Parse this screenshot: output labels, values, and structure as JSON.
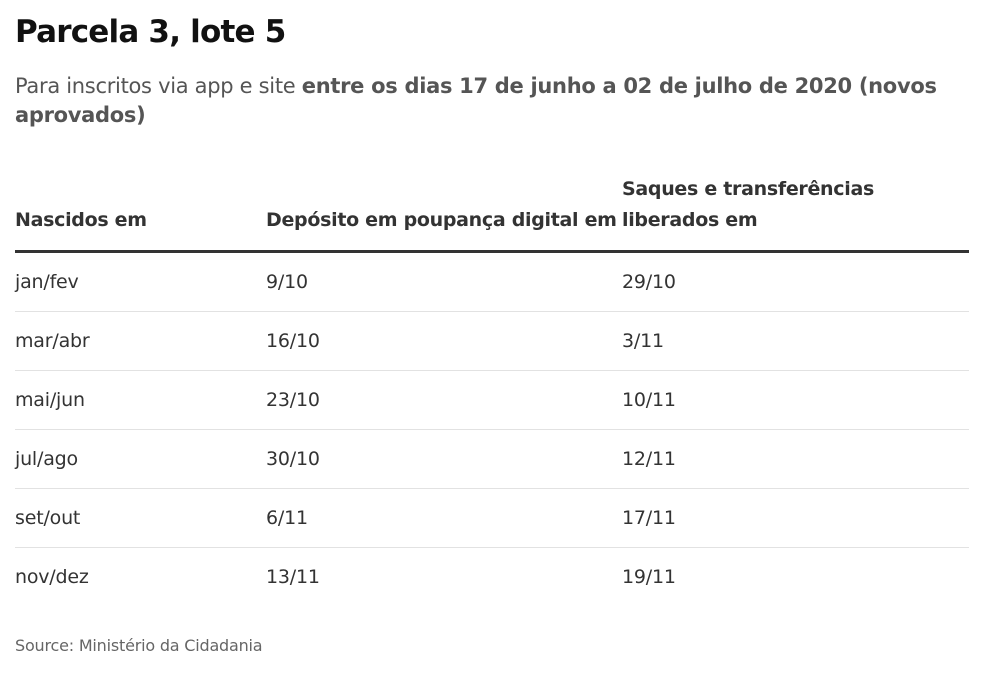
{
  "title": "Parcela 3, lote 5",
  "subtitle": {
    "prefix": "Para inscritos via app e site ",
    "emphasis": "entre os dias 17 de junho a 02 de julho de 2020 (novos aprovados)"
  },
  "table": {
    "headers": [
      "Nascidos em",
      "Depósito em poupança digital em",
      "Saques e transferências liberados em"
    ],
    "rows": [
      [
        "jan/fev",
        "9/10",
        "29/10"
      ],
      [
        "mar/abr",
        "16/10",
        "3/11"
      ],
      [
        "mai/jun",
        "23/10",
        "10/11"
      ],
      [
        "jul/ago",
        "30/10",
        "12/11"
      ],
      [
        "set/out",
        "6/11",
        "17/11"
      ],
      [
        "nov/dez",
        "13/11",
        "19/11"
      ]
    ]
  },
  "source": "Source: Ministério da Cidadania"
}
